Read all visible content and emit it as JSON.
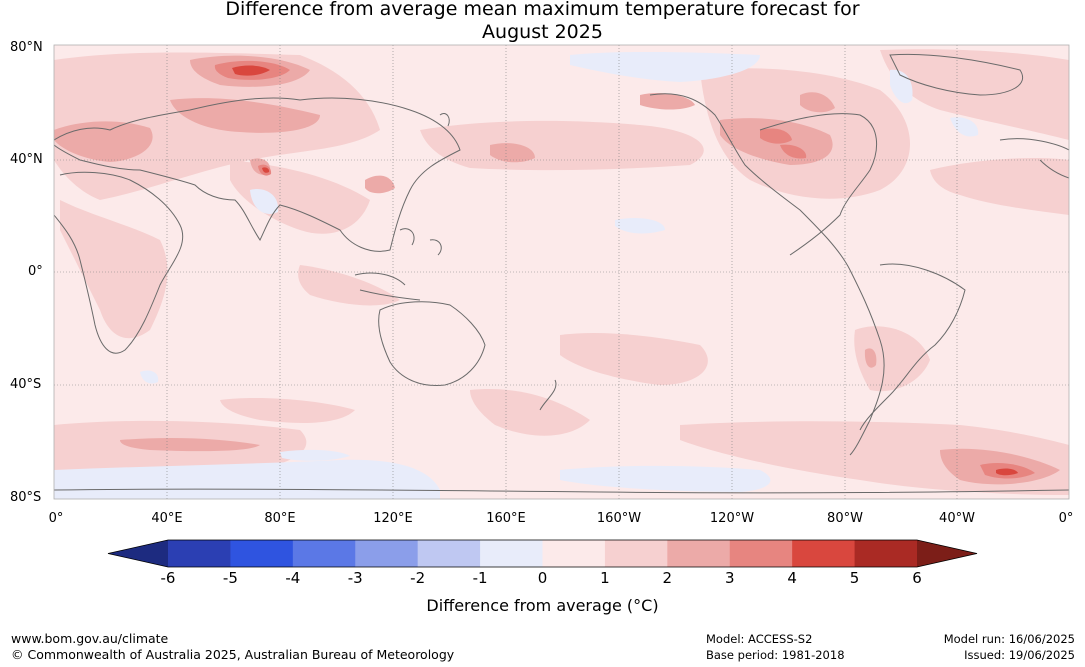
{
  "title_line1": "Difference from average mean maximum temperature forecast for",
  "title_line2": "August 2025",
  "map": {
    "lat_labels": [
      "80°N",
      "40°N",
      "0°",
      "40°S",
      "80°S"
    ],
    "lon_labels": [
      "0°",
      "40°E",
      "80°E",
      "120°E",
      "160°E",
      "160°W",
      "120°W",
      "80°W",
      "40°W",
      "0°"
    ]
  },
  "colorbar": {
    "label": "Difference from average (°C)",
    "ticks": [
      "-6",
      "-5",
      "-4",
      "-3",
      "-2",
      "-1",
      "0",
      "1",
      "2",
      "3",
      "4",
      "5",
      "6"
    ],
    "colors": [
      "#2b3fb3",
      "#2f54e0",
      "#5b78e6",
      "#8b9eea",
      "#bfc8f2",
      "#e8ecfa",
      "#fceaea",
      "#f6d0d0",
      "#ecaaa8",
      "#e78580",
      "#d9473e",
      "#aa2a24"
    ],
    "under_color": "#1d2b80",
    "over_color": "#7c1e18"
  },
  "footer": {
    "website": "www.bom.gov.au/climate",
    "copyright": "© Commonwealth of Australia 2025, Australian Bureau of Meteorology",
    "model": "Model: ACCESS-S2",
    "base_period": "Base period: 1981-2018",
    "model_run": "Model run: 16/06/2025",
    "issued": "Issued: 19/06/2025"
  }
}
